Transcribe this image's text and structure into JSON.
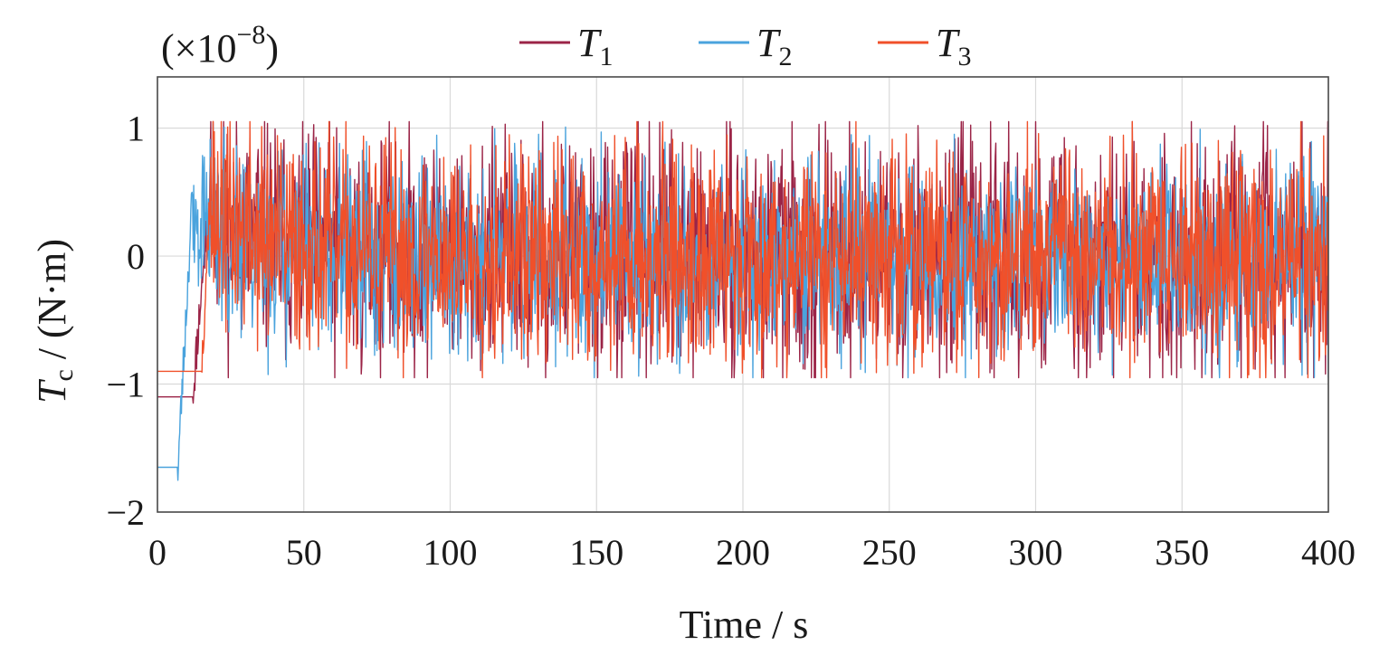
{
  "chart_data": {
    "type": "line",
    "multiplier_label": "(×10",
    "multiplier_exponent": "−8",
    "multiplier_close": ")",
    "xlabel": "Time / s",
    "ylabel_symbol": "T",
    "ylabel_subscript": "c",
    "ylabel_unit": " / (N·m)",
    "xlim": [
      0,
      400
    ],
    "ylim": [
      -2,
      1.4
    ],
    "xticks": [
      0,
      50,
      100,
      150,
      200,
      250,
      300,
      350,
      400
    ],
    "xtick_labels": [
      "0",
      "50",
      "100",
      "150",
      "200",
      "250",
      "300",
      "350",
      "400"
    ],
    "yticks": [
      -2,
      -1,
      0,
      1
    ],
    "ytick_labels": [
      "−2",
      "−1",
      "0",
      "1"
    ],
    "grid": true,
    "legend_position": "top",
    "series": [
      {
        "name": "T",
        "subscript": "1",
        "color": "#9b2447",
        "initial_value": -1.1,
        "hold_until": 12,
        "rise_end": 18,
        "peak": 0.55,
        "settle_time": 60,
        "noise_amplitude": 0.55,
        "seed": 11
      },
      {
        "name": "T",
        "subscript": "2",
        "color": "#4aa3dd",
        "initial_value": -1.65,
        "hold_until": 7,
        "rise_end": 12,
        "peak": 0.5,
        "settle_time": 55,
        "noise_amplitude": 0.45,
        "seed": 23
      },
      {
        "name": "T",
        "subscript": "3",
        "color": "#f0502a",
        "initial_value": -0.9,
        "hold_until": 15,
        "rise_end": 18,
        "peak": 0.5,
        "settle_time": 60,
        "noise_amplitude": 0.5,
        "seed": 37
      }
    ]
  }
}
